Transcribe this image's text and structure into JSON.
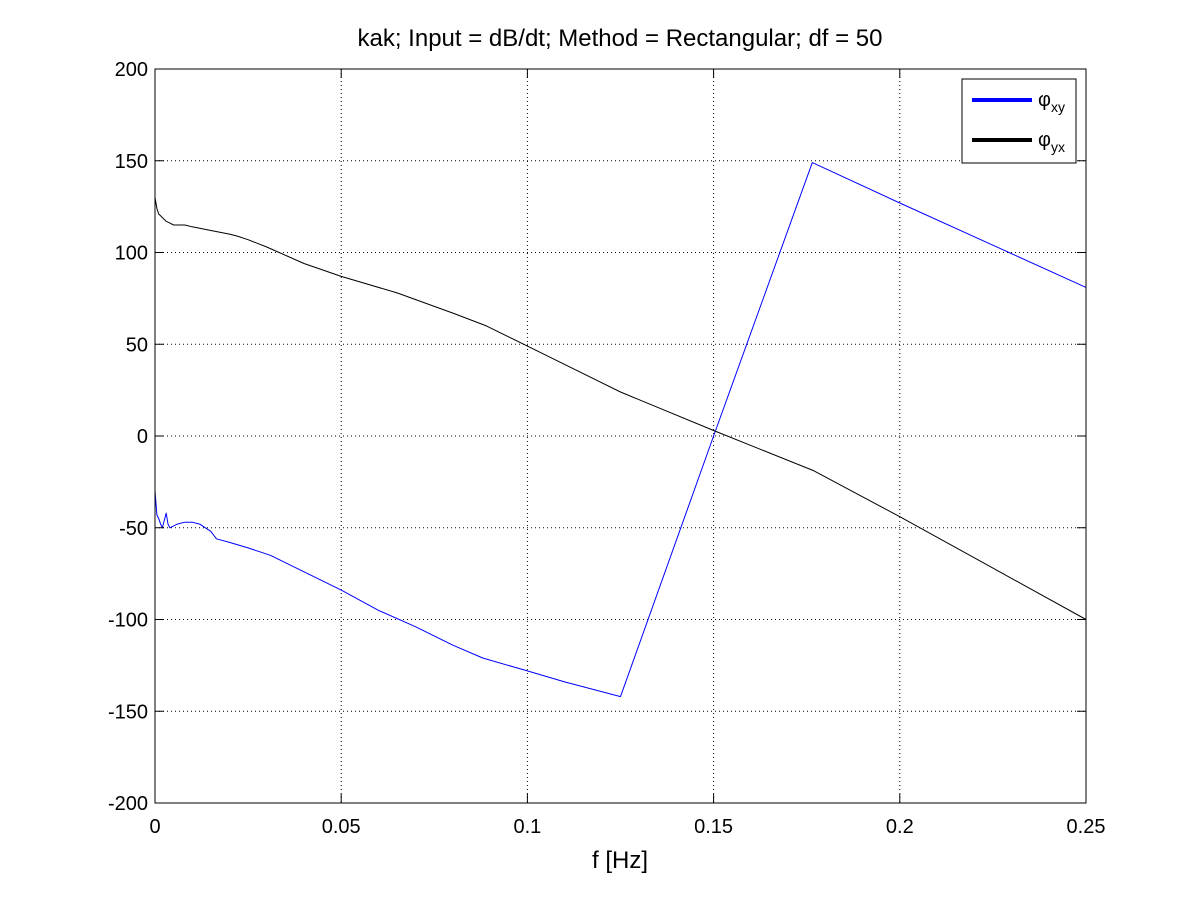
{
  "chart_data": {
    "type": "line",
    "title": "kak; Input = dB/dt; Method = Rectangular; df = 50",
    "xlabel": "f [Hz]",
    "ylabel": "",
    "xlim": [
      0,
      0.25
    ],
    "ylim": [
      -200,
      200
    ],
    "xticks": [
      0,
      0.05,
      0.1,
      0.15,
      0.2,
      0.25
    ],
    "xtick_labels": [
      "0",
      "0.05",
      "0.1",
      "0.15",
      "0.2",
      "0.25"
    ],
    "yticks": [
      -200,
      -150,
      -100,
      -50,
      0,
      50,
      100,
      150,
      200
    ],
    "ytick_labels": [
      "-200",
      "-150",
      "-100",
      "-50",
      "0",
      "50",
      "100",
      "150",
      "200"
    ],
    "grid": true,
    "legend_position": "top-right",
    "series": [
      {
        "name": "φxy",
        "legend_symbol": "φ",
        "legend_subscript": "xy",
        "color": "#0000ff",
        "x": [
          0,
          0.0005,
          0.001,
          0.0015,
          0.002,
          0.0025,
          0.003,
          0.0035,
          0.004,
          0.005,
          0.006,
          0.008,
          0.01,
          0.012,
          0.015,
          0.0165,
          0.02,
          0.025,
          0.031,
          0.04,
          0.05,
          0.06,
          0.07,
          0.08,
          0.088,
          0.1,
          0.11,
          0.125,
          0.15,
          0.1765,
          0.2,
          0.225,
          0.25
        ],
        "y": [
          -30,
          -43,
          -45,
          -48,
          -50,
          -46,
          -42,
          -48,
          -50,
          -49,
          -48,
          -47,
          -47,
          -48,
          -52,
          -56,
          -58,
          -61,
          -65,
          -74,
          -84,
          -95,
          -104,
          -114,
          -121,
          -128,
          -134,
          -142,
          0,
          149,
          127,
          104,
          81
        ]
      },
      {
        "name": "φyx",
        "legend_symbol": "φ",
        "legend_subscript": "yx",
        "color": "#000000",
        "x": [
          0,
          0.0005,
          0.001,
          0.0015,
          0.002,
          0.003,
          0.004,
          0.005,
          0.006,
          0.008,
          0.01,
          0.015,
          0.02,
          0.022,
          0.025,
          0.03,
          0.04,
          0.05,
          0.065,
          0.08,
          0.089,
          0.1,
          0.125,
          0.15,
          0.177,
          0.2,
          0.225,
          0.25
        ],
        "y": [
          130,
          124,
          121,
          120,
          119,
          117,
          116,
          115,
          115,
          115,
          114,
          112,
          110,
          109,
          107,
          103,
          94,
          87,
          78,
          67,
          60,
          49,
          24,
          3,
          -19,
          -44,
          -72,
          -100
        ]
      }
    ]
  }
}
